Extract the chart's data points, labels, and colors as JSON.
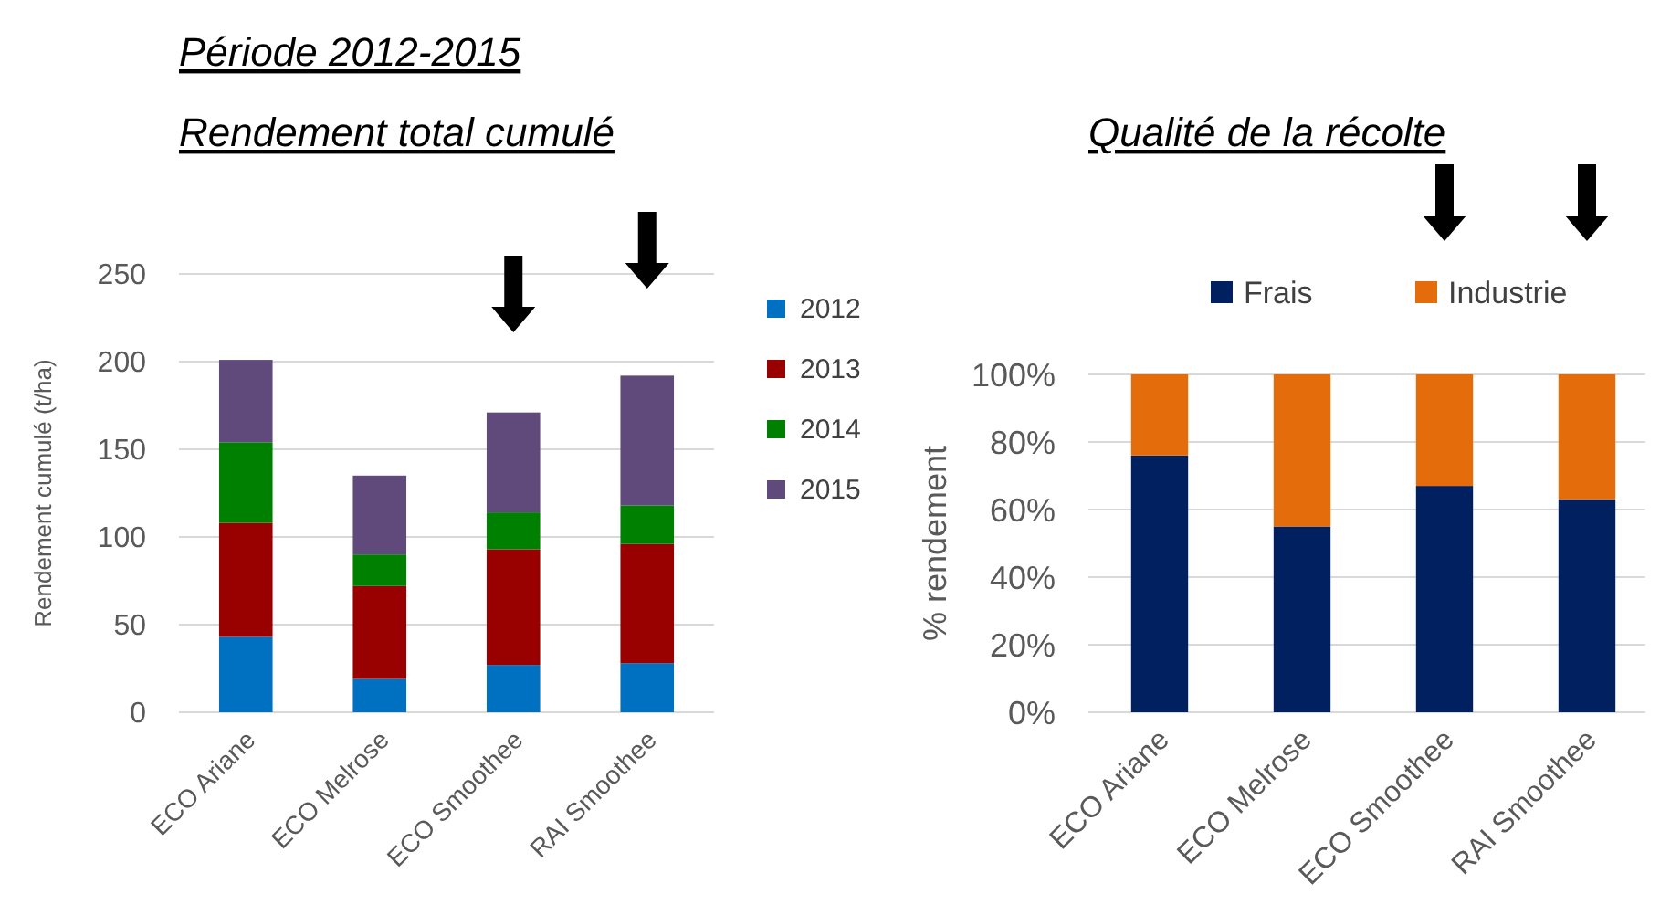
{
  "chart_data": [
    {
      "type": "bar",
      "stacked": true,
      "title": "Période 2012-2015",
      "subtitle": "Rendement total cumulé",
      "ylabel": "Rendement cumulé (t/ha)",
      "categories": [
        "ECO Ariane",
        "ECO Melrose",
        "ECO Smoothee",
        "RAI Smoothee"
      ],
      "series": [
        {
          "name": "2012",
          "color": "#0070c0",
          "values": [
            43,
            19,
            27,
            28
          ]
        },
        {
          "name": "2013",
          "color": "#990000",
          "values": [
            65,
            53,
            66,
            68
          ]
        },
        {
          "name": "2014",
          "color": "#008000",
          "values": [
            46,
            18,
            21,
            22
          ]
        },
        {
          "name": "2015",
          "color": "#604a7b",
          "values": [
            47,
            45,
            57,
            74
          ]
        }
      ],
      "ylim": [
        0,
        250
      ],
      "yticks": [
        0,
        50,
        100,
        150,
        200,
        250
      ],
      "grid": "y",
      "legend": "right"
    },
    {
      "type": "bar",
      "stacked": true,
      "title": "Qualité de la récolte",
      "ylabel": "% rendement",
      "categories": [
        "ECO Ariane",
        "ECO Melrose",
        "ECO Smoothee",
        "RAI Smoothee"
      ],
      "series": [
        {
          "name": "Frais",
          "color": "#002060",
          "values": [
            76,
            55,
            67,
            63
          ]
        },
        {
          "name": "Industrie",
          "color": "#e46c0a",
          "values": [
            24,
            45,
            33,
            37
          ]
        }
      ],
      "ylim": [
        0,
        100
      ],
      "yticks": [
        {
          "value": 0,
          "label": "0%"
        },
        {
          "value": 20,
          "label": "20%"
        },
        {
          "value": 40,
          "label": "40%"
        },
        {
          "value": 60,
          "label": "60%"
        },
        {
          "value": 80,
          "label": "80%"
        },
        {
          "value": 100,
          "label": "100%"
        }
      ],
      "grid": "y",
      "legend": "top"
    }
  ]
}
